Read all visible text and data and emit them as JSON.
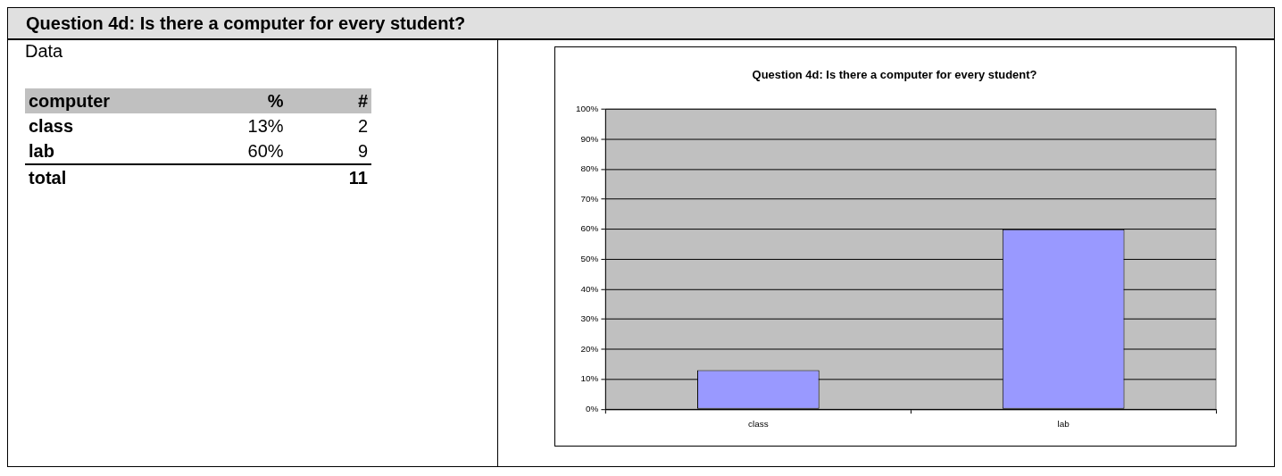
{
  "chart_data": {
    "type": "bar",
    "title": "Question 4d: Is there a computer for every student?",
    "categories": [
      "class",
      "lab"
    ],
    "values": [
      13,
      60
    ],
    "color": "#9999ff",
    "ylim": [
      0,
      100
    ],
    "yticks": [
      {
        "value": 0,
        "label": "0%"
      },
      {
        "value": 10,
        "label": "10%"
      },
      {
        "value": 20,
        "label": "20%"
      },
      {
        "value": 30,
        "label": "30%"
      },
      {
        "value": 40,
        "label": "40%"
      },
      {
        "value": 50,
        "label": "50%"
      },
      {
        "value": 60,
        "label": "60%"
      },
      {
        "value": 70,
        "label": "70%"
      },
      {
        "value": 80,
        "label": "80%"
      },
      {
        "value": 90,
        "label": "90%"
      },
      {
        "value": 100,
        "label": "100%"
      }
    ],
    "grid": "y",
    "legend": false,
    "annotations": [
      "Data",
      "computer",
      "%",
      "#",
      "13%",
      "2",
      "60%",
      "9",
      "total",
      "11"
    ]
  }
}
